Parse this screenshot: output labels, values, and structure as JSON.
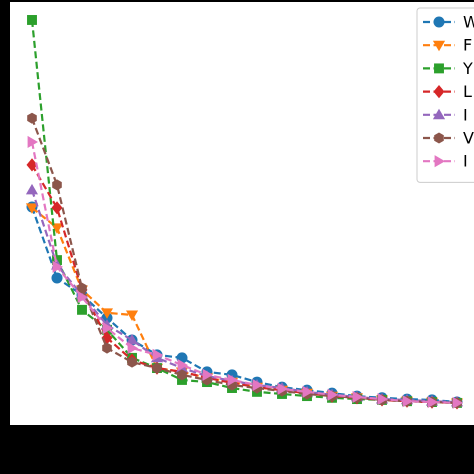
{
  "chart_data": {
    "type": "line",
    "categories": [
      null,
      null,
      null,
      null,
      null,
      null,
      null,
      null,
      null,
      null,
      null,
      null,
      null,
      null,
      null,
      null,
      null,
      null
    ],
    "ylim": [
      0,
      100
    ],
    "legend": "upper right",
    "series": [
      {
        "name": "W",
        "color": "#1f77b4",
        "marker": "circle",
        "values": [
          51.3,
          34.6,
          30.6,
          25.2,
          20.0,
          16.5,
          15.8,
          12.5,
          11.8,
          10.1,
          8.9,
          8.2,
          7.5,
          6.8,
          6.4,
          6.1,
          5.9,
          5.4
        ]
      },
      {
        "name": "F",
        "color": "#ff7f0e",
        "marker": "triangle-down",
        "values": [
          51.1,
          46.4,
          31.8,
          26.4,
          25.9,
          13.4,
          12.5,
          11.1,
          10.1,
          8.9,
          8.2,
          7.5,
          6.8,
          6.4,
          5.9,
          5.6,
          5.4,
          5.2
        ]
      },
      {
        "name": "Y",
        "color": "#2ca02c",
        "marker": "square",
        "values": [
          95.3,
          38.8,
          27.1,
          22.4,
          15.8,
          13.4,
          10.6,
          10.1,
          8.7,
          7.8,
          7.3,
          6.8,
          6.4,
          6.1,
          5.9,
          5.6,
          5.4,
          5.2
        ]
      },
      {
        "name": "L",
        "color": "#d62728",
        "marker": "diamond",
        "values": [
          61.2,
          51.1,
          31.8,
          20.5,
          15.3,
          13.4,
          12.5,
          11.1,
          9.9,
          8.9,
          8.2,
          7.5,
          6.8,
          6.4,
          5.9,
          5.6,
          5.4,
          5.2
        ]
      },
      {
        "name": "I",
        "color": "#9467bd",
        "marker": "triangle-up",
        "values": [
          55.3,
          37.6,
          30.6,
          23.5,
          20.0,
          15.8,
          13.4,
          11.5,
          10.4,
          9.4,
          8.7,
          7.8,
          7.1,
          6.6,
          6.1,
          5.9,
          5.6,
          5.4
        ]
      },
      {
        "name": "V",
        "color": "#8c564b",
        "marker": "hexagon",
        "values": [
          72.2,
          56.5,
          32.2,
          18.1,
          14.8,
          13.4,
          11.8,
          10.6,
          9.4,
          8.7,
          8.0,
          7.3,
          6.8,
          6.4,
          5.9,
          5.6,
          5.4,
          5.2
        ]
      },
      {
        "name": "I",
        "color": "#e377c2",
        "marker": "triangle-right",
        "values": [
          66.6,
          37.2,
          30.1,
          22.8,
          18.1,
          16.5,
          14.1,
          11.8,
          10.6,
          9.4,
          8.5,
          7.8,
          7.1,
          6.6,
          6.1,
          5.6,
          5.4,
          5.2
        ]
      }
    ]
  }
}
